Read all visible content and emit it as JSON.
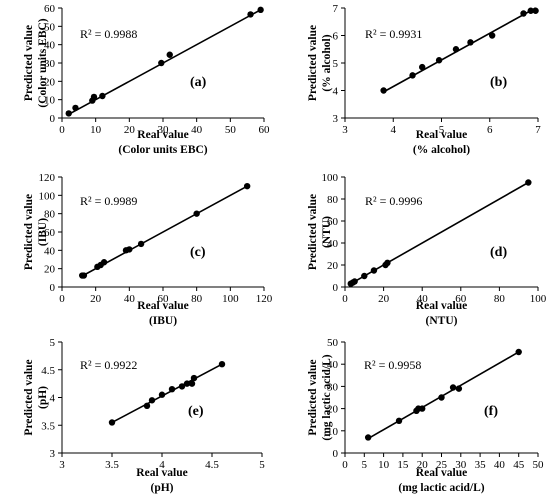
{
  "chart_data": [
    {
      "type": "scatter",
      "panel_label": "(a)",
      "annotation": "R² = 0.9988",
      "xlabel": [
        "Real value",
        "(Color units EBC)"
      ],
      "ylabel": [
        "Predicted value",
        "(Color units EBC)"
      ],
      "xlim": [
        0,
        60
      ],
      "ylim": [
        0,
        60
      ],
      "xticks": [
        0,
        10,
        20,
        30,
        40,
        50,
        60
      ],
      "yticks": [
        0,
        10,
        20,
        30,
        40,
        50,
        60
      ],
      "x": [
        2,
        4,
        9,
        9.5,
        12,
        29.5,
        32,
        56,
        59
      ],
      "y": [
        2.5,
        5.5,
        9.5,
        11.5,
        12,
        30,
        34.5,
        56.5,
        59
      ],
      "fit_line": [
        [
          2,
          2
        ],
        [
          59,
          59
        ]
      ]
    },
    {
      "type": "scatter",
      "panel_label": "(b)",
      "annotation": "R² = 0.9931",
      "xlabel": [
        "Real value",
        "(% alcohol)"
      ],
      "ylabel": [
        "Predicted value",
        "(% alcohol)"
      ],
      "xlim": [
        3,
        7
      ],
      "ylim": [
        3,
        7
      ],
      "xticks": [
        3,
        4,
        5,
        6,
        7
      ],
      "yticks": [
        3,
        4,
        5,
        6,
        7
      ],
      "x": [
        3.8,
        4.4,
        4.6,
        4.95,
        5.3,
        5.6,
        6.05,
        6.7,
        6.85,
        6.95
      ],
      "y": [
        4.0,
        4.55,
        4.85,
        5.1,
        5.5,
        5.75,
        6.0,
        6.8,
        6.9,
        6.9
      ],
      "fit_line": [
        [
          3.8,
          3.95
        ],
        [
          6.95,
          7.0
        ]
      ]
    },
    {
      "type": "scatter",
      "panel_label": "(c)",
      "annotation": "R² = 0.9989",
      "xlabel": [
        "Real value",
        "(IBU)"
      ],
      "ylabel": [
        "Predicted value",
        "(IBU)"
      ],
      "xlim": [
        0,
        120
      ],
      "ylim": [
        0,
        120
      ],
      "xticks": [
        0,
        20,
        40,
        60,
        80,
        100,
        120
      ],
      "yticks": [
        0,
        20,
        40,
        60,
        80,
        100,
        120
      ],
      "x": [
        12,
        13,
        21,
        23,
        25,
        38,
        40,
        47,
        80,
        110
      ],
      "y": [
        12.5,
        12.5,
        22,
        24,
        27,
        40,
        41,
        47,
        80,
        110
      ],
      "fit_line": [
        [
          12,
          12
        ],
        [
          110,
          110
        ]
      ]
    },
    {
      "type": "scatter",
      "panel_label": "(d)",
      "annotation": "R² = 0.9996",
      "xlabel": [
        "Real value",
        "(NTU)"
      ],
      "ylabel": [
        "Predicted value",
        "(NTU)"
      ],
      "xlim": [
        0,
        100
      ],
      "ylim": [
        0,
        100
      ],
      "xticks": [
        0,
        20,
        40,
        60,
        80,
        100
      ],
      "yticks": [
        0,
        20,
        40,
        60,
        80,
        100
      ],
      "x": [
        3,
        4,
        5,
        10,
        15,
        21,
        22,
        95
      ],
      "y": [
        3,
        4,
        5,
        10,
        15,
        20,
        22,
        95
      ],
      "fit_line": [
        [
          2,
          2
        ],
        [
          95,
          95
        ]
      ]
    },
    {
      "type": "scatter",
      "panel_label": "(e)",
      "annotation": "R² = 0.9922",
      "xlabel": [
        "Real value",
        "(pH)"
      ],
      "ylabel": [
        "Predicted value",
        "(pH)"
      ],
      "xlim": [
        3,
        5
      ],
      "ylim": [
        3,
        5
      ],
      "xticks": [
        3,
        3.5,
        4,
        4.5,
        5
      ],
      "yticks": [
        3,
        3.5,
        4,
        4.5,
        5
      ],
      "x": [
        3.5,
        3.85,
        3.9,
        4.0,
        4.1,
        4.2,
        4.25,
        4.3,
        4.32,
        4.6
      ],
      "y": [
        3.55,
        3.85,
        3.95,
        4.05,
        4.15,
        4.2,
        4.25,
        4.25,
        4.35,
        4.6
      ],
      "fit_line": [
        [
          3.5,
          3.55
        ],
        [
          4.6,
          4.6
        ]
      ]
    },
    {
      "type": "scatter",
      "panel_label": "(f)",
      "annotation": "R² = 0.9958",
      "xlabel": [
        "Real value",
        "(mg lactic acid/L)"
      ],
      "ylabel": [
        "Predicted value",
        "(mg lactic acid/L)"
      ],
      "xlim": [
        0,
        50
      ],
      "ylim": [
        0,
        50
      ],
      "xticks": [
        0,
        5,
        10,
        15,
        20,
        25,
        30,
        35,
        40,
        45,
        50
      ],
      "yticks": [
        0,
        10,
        20,
        30,
        40,
        50
      ],
      "x": [
        6,
        14,
        18.5,
        19,
        20,
        25,
        28,
        29.5,
        45
      ],
      "y": [
        7,
        14.5,
        19,
        20,
        20,
        25,
        29.5,
        29,
        45.5
      ],
      "fit_line": [
        [
          6,
          6.5
        ],
        [
          45,
          45.5
        ]
      ]
    }
  ]
}
